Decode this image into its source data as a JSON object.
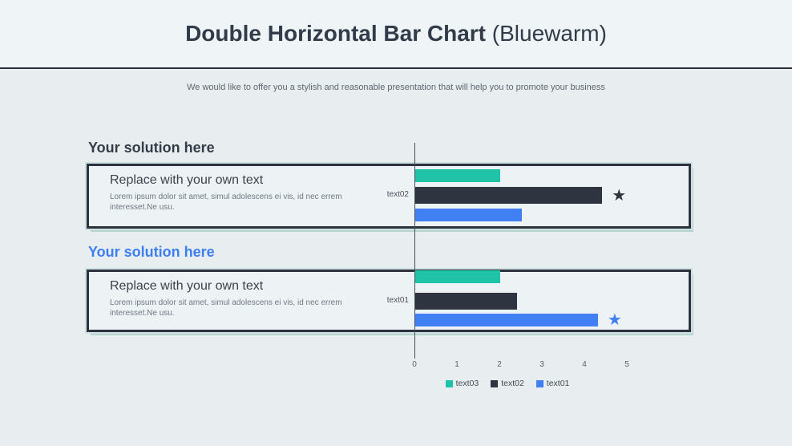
{
  "header": {
    "title_bold": "Double Horizontal Bar Chart",
    "title_regular": " (Bluewarm)",
    "subtitle": "We would like to offer you a stylish and reasonable presentation that will help you to promote your business"
  },
  "sections": [
    {
      "heading": "Your solution here",
      "heading_color": "#343c46",
      "card": {
        "title": "Replace with your own text",
        "body": "Lorem ipsum dolor sit amet, simul adolescens ei vis, id nec errem interesset.Ne usu."
      },
      "group_label": "text02"
    },
    {
      "heading": "Your solution here",
      "heading_color": "#3c7ef2",
      "card": {
        "title": "Replace with your own text",
        "body": "Lorem ipsum dolor sit amet, simul adolescens ei vis, id nec errem interesset.Ne usu."
      },
      "group_label": "text01"
    }
  ],
  "chart_data": {
    "type": "bar",
    "orientation": "horizontal",
    "title": "Double Horizontal Bar Chart (Bluewarm)",
    "categories": [
      "text02",
      "text01"
    ],
    "series": [
      {
        "name": "text03",
        "color": "#21c3a8",
        "values": [
          2.0,
          2.0
        ]
      },
      {
        "name": "text02",
        "color": "#2f3540",
        "values": [
          4.4,
          2.4
        ]
      },
      {
        "name": "text01",
        "color": "#4180f2",
        "values": [
          2.5,
          4.3
        ]
      }
    ],
    "xlim": [
      0,
      5
    ],
    "xticks": [
      0,
      1,
      2,
      3,
      4,
      5
    ],
    "grid": false,
    "legend_position": "bottom",
    "annotations": [
      {
        "category": "text02",
        "series": "text02",
        "symbol": "★",
        "color": "#2f3540"
      },
      {
        "category": "text01",
        "series": "text01",
        "symbol": "★",
        "color": "#4180f2"
      }
    ]
  }
}
